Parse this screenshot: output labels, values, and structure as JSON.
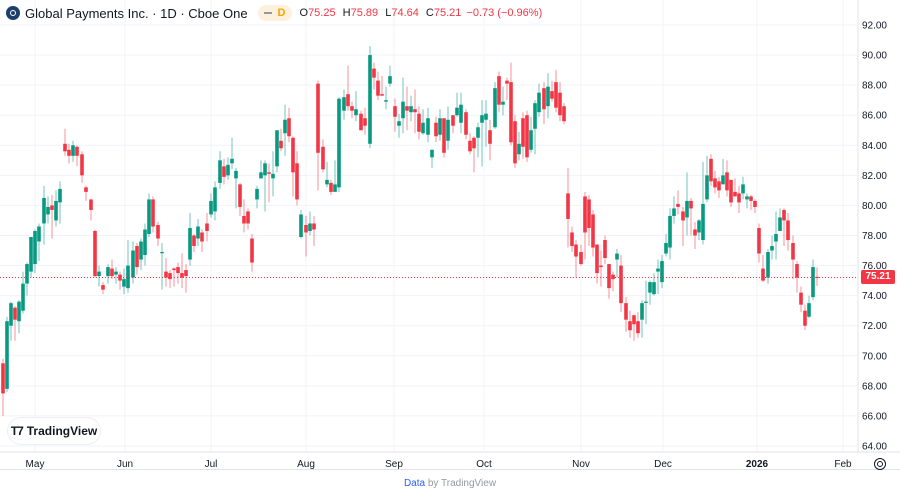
{
  "header": {
    "title": "Global Payments Inc. · 1D · Cboe One",
    "interval_badge": "D",
    "ohlc": {
      "open_label": "O",
      "open": "75.25",
      "high_label": "H",
      "high": "75.89",
      "low_label": "L",
      "low": "74.64",
      "close_label": "C",
      "close": "75.21",
      "change": "−0.73 (−0.96%)"
    }
  },
  "current_price_label": "75.21",
  "brand": {
    "badge_text": "TradingView"
  },
  "footer": {
    "link": "Data",
    "suffix": " by TradingView"
  },
  "colors": {
    "up": "#089981",
    "down": "#f23645",
    "grid": "#f0f3fa",
    "text": "#131722"
  },
  "chart_data": {
    "type": "candlestick",
    "title": "Global Payments Inc. · 1D · Cboe One",
    "ylim": [
      64,
      92
    ],
    "y_ticks": [
      "92.00",
      "90.00",
      "88.00",
      "86.00",
      "84.00",
      "82.00",
      "80.00",
      "78.00",
      "76.00",
      "74.00",
      "72.00",
      "70.00",
      "68.00",
      "66.00",
      "64.00"
    ],
    "x_ticks": [
      {
        "label": "May",
        "x": 35
      },
      {
        "label": "Jun",
        "x": 125
      },
      {
        "label": "Jul",
        "x": 211
      },
      {
        "label": "Aug",
        "x": 306
      },
      {
        "label": "Sep",
        "x": 394
      },
      {
        "label": "Oct",
        "x": 484
      },
      {
        "label": "Nov",
        "x": 581
      },
      {
        "label": "Dec",
        "x": 663
      },
      {
        "label": "2026",
        "x": 757,
        "bold": true
      },
      {
        "label": "Feb",
        "x": 843
      }
    ],
    "last_price": 75.21,
    "candles": [
      [
        3,
        69.5,
        67.5,
        69.8,
        66.0
      ],
      [
        7,
        67.8,
        72.3,
        72.6,
        67.6
      ],
      [
        11,
        72.0,
        73.5,
        73.6,
        71.0
      ],
      [
        15,
        73.2,
        72.4,
        73.3,
        71.0
      ],
      [
        19,
        72.3,
        73.6,
        73.7,
        71.5
      ],
      [
        23,
        73.0,
        74.8,
        75.6,
        72.8
      ],
      [
        27,
        74.8,
        76.1,
        76.2,
        74.0
      ],
      [
        31,
        75.6,
        77.9,
        77.9,
        75.2
      ],
      [
        35,
        76.1,
        78.3,
        78.4,
        75.5
      ],
      [
        39,
        77.6,
        78.6,
        78.8,
        76.3
      ],
      [
        44,
        78.8,
        80.5,
        81.3,
        77.4
      ],
      [
        48,
        79.4,
        79.9,
        80.6,
        78.8
      ],
      [
        52,
        80.0,
        79.7,
        80.7,
        77.8
      ],
      [
        56,
        79.0,
        80.3,
        81.0,
        78.6
      ],
      [
        60,
        80.2,
        81.1,
        81.6,
        78.8
      ],
      [
        65,
        84.1,
        83.6,
        85.1,
        83.3
      ],
      [
        69,
        83.7,
        83.3,
        84.1,
        82.8
      ],
      [
        73,
        83.3,
        84.0,
        84.3,
        82.9
      ],
      [
        77,
        83.9,
        83.3,
        84.0,
        82.6
      ],
      [
        82,
        83.4,
        82.0,
        83.6,
        81.5
      ],
      [
        86,
        81.2,
        80.9,
        81.3,
        80.3
      ],
      [
        91,
        80.4,
        79.7,
        80.4,
        79.0
      ],
      [
        95,
        78.3,
        75.3,
        78.4,
        75.2
      ],
      [
        99,
        75.3,
        75.6,
        76.0,
        74.6
      ],
      [
        103,
        74.7,
        74.4,
        74.9,
        74.1
      ],
      [
        108,
        75.3,
        75.9,
        76.1,
        74.8
      ],
      [
        112,
        75.8,
        75.3,
        76.4,
        75.1
      ],
      [
        116,
        75.4,
        75.6,
        75.9,
        74.8
      ],
      [
        120,
        75.4,
        75.0,
        75.6,
        74.4
      ],
      [
        124,
        74.6,
        75.1,
        75.8,
        74.1
      ],
      [
        128,
        74.5,
        76.0,
        77.7,
        74.2
      ],
      [
        133,
        75.2,
        77.0,
        77.6,
        74.8
      ],
      [
        137,
        77.3,
        75.9,
        77.5,
        75.4
      ],
      [
        141,
        76.4,
        77.6,
        77.8,
        75.7
      ],
      [
        145,
        76.7,
        78.4,
        78.8,
        76.0
      ],
      [
        149,
        78.1,
        80.4,
        80.8,
        77.9
      ],
      [
        153,
        80.4,
        78.6,
        80.6,
        78.2
      ],
      [
        158,
        78.7,
        77.8,
        78.9,
        77.3
      ],
      [
        162,
        76.9,
        76.9,
        77.5,
        74.4
      ],
      [
        166,
        75.6,
        75.2,
        76.5,
        74.6
      ],
      [
        170,
        75.5,
        75.1,
        75.7,
        74.5
      ],
      [
        174,
        75.8,
        75.7,
        75.9,
        74.6
      ],
      [
        178,
        75.9,
        75.5,
        76.2,
        74.8
      ],
      [
        182,
        75.5,
        75.2,
        76.8,
        74.5
      ],
      [
        186,
        75.7,
        75.3,
        76.1,
        74.2
      ],
      [
        190,
        76.4,
        78.5,
        79.5,
        76.0
      ],
      [
        194,
        78.0,
        77.3,
        78.1,
        76.9
      ],
      [
        198,
        77.8,
        78.6,
        79.1,
        77.3
      ],
      [
        202,
        78.2,
        77.6,
        78.4,
        76.9
      ],
      [
        207,
        78.8,
        78.3,
        79.5,
        77.6
      ],
      [
        211,
        79.4,
        80.3,
        80.8,
        79.2
      ],
      [
        215,
        79.6,
        81.2,
        81.6,
        79.0
      ],
      [
        220,
        81.5,
        83.0,
        83.6,
        81.1
      ],
      [
        224,
        82.6,
        81.9,
        83.1,
        81.4
      ],
      [
        228,
        82.0,
        82.7,
        83.2,
        81.7
      ],
      [
        232,
        82.8,
        83.1,
        84.5,
        82.4
      ],
      [
        236,
        81.8,
        82.3,
        82.5,
        79.8
      ],
      [
        240,
        81.4,
        79.9,
        81.5,
        79.3
      ],
      [
        244,
        79.3,
        78.8,
        80.4,
        78.2
      ],
      [
        248,
        79.6,
        78.8,
        79.8,
        78.4
      ],
      [
        252,
        77.8,
        76.2,
        78.1,
        75.6
      ],
      [
        257,
        80.4,
        81.1,
        81.3,
        79.8
      ],
      [
        261,
        81.8,
        82.2,
        83.0,
        81.8
      ],
      [
        265,
        82.0,
        82.8,
        83.0,
        79.6
      ],
      [
        269,
        82.2,
        82.1,
        82.8,
        80.2
      ],
      [
        273,
        81.8,
        82.1,
        83.6,
        80.6
      ],
      [
        277,
        82.6,
        85.0,
        85.0,
        82.2
      ],
      [
        281,
        84.3,
        83.8,
        85.1,
        83.6
      ],
      [
        285,
        84.8,
        85.7,
        86.7,
        83.3
      ],
      [
        289,
        85.8,
        84.6,
        86.5,
        84.2
      ],
      [
        293,
        84.5,
        82.2,
        84.6,
        80.6
      ],
      [
        297,
        82.8,
        80.4,
        83.6,
        80.0
      ],
      [
        301,
        77.9,
        79.4,
        79.7,
        77.8
      ],
      [
        306,
        78.7,
        78.2,
        79.3,
        76.6
      ],
      [
        310,
        78.3,
        78.8,
        79.6,
        78.0
      ],
      [
        314,
        78.8,
        78.4,
        79.3,
        77.3
      ],
      [
        318,
        88.1,
        83.5,
        88.3,
        81.0
      ],
      [
        323,
        83.9,
        82.4,
        84.4,
        82.2
      ],
      [
        327,
        81.4,
        81.7,
        82.9,
        81.2
      ],
      [
        331,
        81.5,
        80.9,
        81.7,
        80.7
      ],
      [
        335,
        80.9,
        81.4,
        83.0,
        81.1
      ],
      [
        339,
        81.2,
        87.1,
        87.2,
        80.9
      ],
      [
        344,
        86.3,
        87.2,
        87.7,
        85.7
      ],
      [
        348,
        87.4,
        86.6,
        89.3,
        86.3
      ],
      [
        352,
        86.6,
        86.3,
        86.9,
        85.8
      ],
      [
        356,
        86.0,
        86.4,
        87.6,
        85.6
      ],
      [
        361,
        86.1,
        85.0,
        86.3,
        85.0
      ],
      [
        365,
        85.8,
        85.3,
        86.5,
        84.7
      ],
      [
        370,
        84.1,
        90.0,
        90.6,
        83.8
      ],
      [
        374,
        89.1,
        88.5,
        89.5,
        87.7
      ],
      [
        378,
        88.3,
        87.3,
        88.9,
        87.0
      ],
      [
        382,
        87.4,
        87.3,
        88.6,
        87.3
      ],
      [
        386,
        86.9,
        87.0,
        87.9,
        86.4
      ],
      [
        390,
        88.1,
        88.6,
        89.3,
        87.9
      ],
      [
        395,
        86.6,
        85.9,
        87.1,
        84.9
      ],
      [
        399,
        85.3,
        85.6,
        86.1,
        84.5
      ],
      [
        403,
        85.8,
        86.9,
        88.5,
        84.8
      ],
      [
        407,
        86.6,
        86.3,
        87.9,
        85.0
      ],
      [
        411,
        86.2,
        86.6,
        87.3,
        85.6
      ],
      [
        415,
        86.4,
        86.2,
        87.7,
        84.8
      ],
      [
        419,
        86.1,
        84.9,
        86.6,
        84.4
      ],
      [
        423,
        84.8,
        85.5,
        86.4,
        84.7
      ],
      [
        428,
        84.7,
        85.8,
        86.5,
        84.2
      ],
      [
        432,
        83.2,
        83.7,
        83.7,
        82.5
      ],
      [
        436,
        85.5,
        84.6,
        85.9,
        84.2
      ],
      [
        440,
        84.7,
        85.8,
        86.4,
        84.3
      ],
      [
        444,
        85.8,
        83.5,
        85.6,
        83.2
      ],
      [
        448,
        84.3,
        85.7,
        86.6,
        83.7
      ],
      [
        453,
        86.0,
        85.3,
        86.0,
        84.8
      ],
      [
        457,
        86.0,
        86.5,
        87.5,
        85.9
      ],
      [
        461,
        85.5,
        86.7,
        87.5,
        84.8
      ],
      [
        466,
        86.2,
        84.7,
        86.4,
        84.4
      ],
      [
        470,
        84.3,
        83.6,
        84.8,
        83.4
      ],
      [
        474,
        84.5,
        83.8,
        84.6,
        82.2
      ],
      [
        478,
        84.5,
        85.2,
        85.5,
        83.2
      ],
      [
        482,
        85.5,
        86.0,
        87.0,
        82.6
      ],
      [
        486,
        85.7,
        86.1,
        87.0,
        83.9
      ],
      [
        490,
        85.0,
        84.1,
        85.7,
        83.0
      ],
      [
        495,
        85.2,
        87.8,
        88.2,
        85.1
      ],
      [
        499,
        88.6,
        86.7,
        88.9,
        86.2
      ],
      [
        503,
        86.7,
        86.9,
        87.9,
        86.0
      ],
      [
        507,
        88.3,
        88.1,
        88.5,
        87.0
      ],
      [
        511,
        88.2,
        84.2,
        89.5,
        84.0
      ],
      [
        515,
        85.6,
        82.8,
        86.0,
        82.5
      ],
      [
        519,
        83.4,
        84.1,
        84.9,
        83.0
      ],
      [
        523,
        85.8,
        83.9,
        86.2,
        83.1
      ],
      [
        527,
        86.0,
        83.2,
        86.3,
        82.9
      ],
      [
        531,
        83.7,
        85.0,
        85.9,
        83.5
      ],
      [
        535,
        85.1,
        86.8,
        87.0,
        83.4
      ],
      [
        539,
        86.2,
        87.5,
        88.1,
        85.9
      ],
      [
        544,
        87.8,
        86.4,
        88.2,
        85.4
      ],
      [
        548,
        86.6,
        87.9,
        88.8,
        85.8
      ],
      [
        552,
        87.6,
        87.1,
        88.3,
        86.9
      ],
      [
        556,
        88.2,
        86.5,
        89.0,
        86.2
      ],
      [
        560,
        87.5,
        86.0,
        88.2,
        85.6
      ],
      [
        564,
        86.6,
        85.6,
        86.8,
        85.4
      ],
      [
        568,
        80.8,
        79.1,
        82.5,
        77.2
      ],
      [
        572,
        78.2,
        77.3,
        78.6,
        76.9
      ],
      [
        576,
        77.4,
        76.6,
        77.7,
        75.2
      ],
      [
        581,
        76.9,
        76.1,
        77.4,
        76.0
      ],
      [
        585,
        80.6,
        78.2,
        80.9,
        76.4
      ],
      [
        589,
        80.4,
        78.5,
        80.7,
        77.3
      ],
      [
        593,
        79.4,
        77.2,
        79.7,
        76.6
      ],
      [
        597,
        77.4,
        75.5,
        77.4,
        74.8
      ],
      [
        601,
        76.0,
        75.9,
        77.0,
        74.6
      ],
      [
        605,
        77.7,
        76.5,
        78.0,
        76.1
      ],
      [
        609,
        76.1,
        74.5,
        76.1,
        73.8
      ],
      [
        613,
        75.4,
        75.1,
        75.6,
        74.3
      ],
      [
        617,
        76.4,
        76.8,
        77.1,
        75.2
      ],
      [
        621,
        76.0,
        73.5,
        76.7,
        72.9
      ],
      [
        626,
        73.5,
        72.4,
        73.9,
        71.6
      ],
      [
        630,
        72.3,
        71.7,
        73.0,
        71.2
      ],
      [
        634,
        72.7,
        72.1,
        72.7,
        71.0
      ],
      [
        638,
        72.3,
        71.5,
        72.9,
        71.2
      ],
      [
        642,
        72.4,
        73.5,
        73.7,
        71.2
      ],
      [
        646,
        73.6,
        73.6,
        75.0,
        72.1
      ],
      [
        650,
        74.2,
        74.9,
        75.0,
        73.4
      ],
      [
        654,
        74.1,
        74.9,
        75.5,
        74.0
      ],
      [
        658,
        75.6,
        75.8,
        76.4,
        74.1
      ],
      [
        662,
        74.9,
        76.3,
        76.7,
        74.5
      ],
      [
        666,
        76.8,
        77.5,
        78.1,
        76.6
      ],
      [
        670,
        77.2,
        79.3,
        79.8,
        76.4
      ],
      [
        674,
        79.3,
        79.8,
        80.6,
        78.8
      ],
      [
        678,
        80.1,
        79.9,
        81.0,
        79.4
      ],
      [
        683,
        79.6,
        79.0,
        79.9,
        77.3
      ],
      [
        687,
        79.2,
        80.3,
        82.2,
        78.0
      ],
      [
        691,
        80.3,
        79.8,
        80.5,
        78.0
      ],
      [
        695,
        78.4,
        78.0,
        78.9,
        77.1
      ],
      [
        699,
        78.2,
        79.0,
        79.1,
        77.7
      ],
      [
        703,
        77.7,
        80.1,
        82.9,
        77.4
      ],
      [
        707,
        80.4,
        82.0,
        83.3,
        80.2
      ],
      [
        711,
        83.1,
        81.6,
        83.4,
        81.3
      ],
      [
        715,
        81.8,
        81.2,
        82.3,
        80.8
      ],
      [
        719,
        81.6,
        81.0,
        81.9,
        80.5
      ],
      [
        723,
        81.4,
        82.0,
        83.1,
        81.4
      ],
      [
        727,
        82.2,
        81.0,
        83.0,
        80.6
      ],
      [
        731,
        81.7,
        80.2,
        81.7,
        79.9
      ],
      [
        735,
        80.9,
        80.6,
        81.8,
        80.6
      ],
      [
        739,
        80.8,
        80.2,
        81.3,
        79.5
      ],
      [
        743,
        80.8,
        81.4,
        81.9,
        80.4
      ],
      [
        747,
        80.4,
        80.6,
        80.8,
        79.8
      ],
      [
        751,
        80.6,
        80.3,
        80.7,
        79.7
      ],
      [
        755,
        80.3,
        79.9,
        80.4,
        79.5
      ],
      [
        759,
        78.5,
        76.8,
        78.8,
        76.2
      ],
      [
        763,
        75.8,
        75.0,
        76.7,
        74.9
      ],
      [
        768,
        75.2,
        76.9,
        77.1,
        74.8
      ],
      [
        772,
        77.0,
        77.3,
        78.0,
        76.4
      ],
      [
        776,
        77.6,
        78.1,
        79.6,
        76.4
      ],
      [
        780,
        78.3,
        79.2,
        79.8,
        78.3
      ],
      [
        784,
        79.7,
        79.0,
        79.8,
        77.3
      ],
      [
        788,
        79.0,
        77.7,
        79.5,
        77.0
      ],
      [
        793,
        77.5,
        76.4,
        78.0,
        75.1
      ],
      [
        797,
        76.1,
        75.2,
        76.3,
        74.2
      ],
      [
        801,
        74.2,
        73.4,
        74.6,
        72.9
      ],
      [
        805,
        73.0,
        72.0,
        73.4,
        71.7
      ],
      [
        809,
        72.6,
        73.5,
        74.0,
        72.5
      ],
      [
        813,
        73.9,
        75.9,
        76.4,
        73.7
      ],
      [
        817,
        75.25,
        75.21,
        75.89,
        74.64
      ]
    ]
  }
}
